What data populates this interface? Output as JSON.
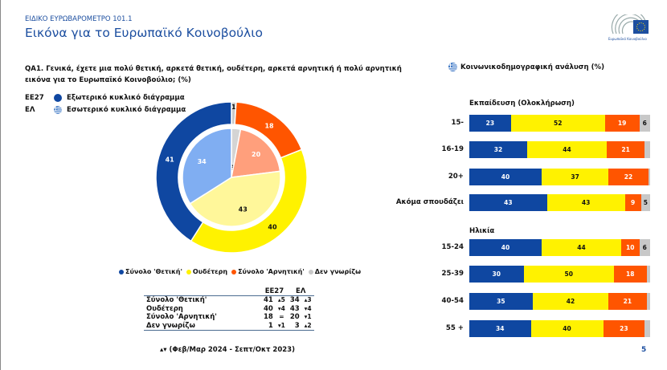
{
  "header": {
    "kicker": "ΕΙΔΙΚΟ ΕΥΡΩΒΑΡΟΜΕΤΡΟ 101.1",
    "title": "Εικόνα για το Ευρωπαϊκό Κοινοβούλιο",
    "logo_text": "Ευρωπαϊκό Κοινοβούλιο"
  },
  "question": "QA1. Γενικά, έχετε μια πολύ θετική, αρκετά θετική, ουδέτερη, αρκετά αρνητική ή πολύ αρνητική εικόνα για το Ευρωπαϊκό Κοινοβούλιο; (%)",
  "ring_legend": [
    {
      "code": "ΕΕ27",
      "label": "Εξωτερικό κυκλικό διάγραμμα",
      "icon": "eu-dot-icon"
    },
    {
      "code": "ΕΛ",
      "label": "Εσωτερικό κυκλικό διάγραμμα",
      "icon": "greek-flag-icon"
    }
  ],
  "colors": {
    "positive": "#0f47a1",
    "neutral": "#fff200",
    "negative": "#ff5500",
    "dontknow": "#c8c8c8",
    "positive_light": "#80aef2",
    "neutral_light": "#fff79a",
    "negative_light": "#ff9f7c",
    "dontknow_light": "#d4d4d4",
    "brand": "#1d4fa0"
  },
  "chart_data": [
    {
      "type": "pie",
      "variant": "double-donut",
      "categories": [
        "Σύνολο 'Θετική'",
        "Ουδέτερη",
        "Σύνολο 'Αρνητική'",
        "Δεν γνωρίζω"
      ],
      "series": [
        {
          "name": "ΕΕ27",
          "ring": "outer",
          "values": [
            41,
            40,
            18,
            1
          ]
        },
        {
          "name": "ΕΛ",
          "ring": "inner",
          "values": [
            34,
            43,
            20,
            3
          ]
        }
      ],
      "legend_placement": "bottom"
    },
    {
      "type": "bar",
      "orientation": "horizontal",
      "stacked": true,
      "title": "Κοινωνικοδημογραφική ανάλυση (%)",
      "categories_order": [
        "Σύνολο 'Θετική'",
        "Ουδέτερη",
        "Σύνολο 'Αρνητική'",
        "Δεν γνωρίζω"
      ],
      "groups": [
        {
          "title": "Εκπαίδευση (Ολοκλήρωση)",
          "rows": [
            {
              "label": "15-",
              "values": [
                23,
                52,
                19,
                6
              ],
              "labels": [
                "23",
                "52",
                "19",
                "6"
              ]
            },
            {
              "label": "16-19",
              "values": [
                32,
                44,
                21,
                3
              ],
              "labels": [
                "32",
                "44",
                "21",
                ""
              ]
            },
            {
              "label": "20+",
              "values": [
                40,
                37,
                22,
                1
              ],
              "labels": [
                "40",
                "37",
                "22",
                ""
              ]
            },
            {
              "label": "Ακόμα σπουδάζει",
              "values": [
                43,
                43,
                9,
                5
              ],
              "labels": [
                "43",
                "43",
                "9",
                "5"
              ]
            }
          ]
        },
        {
          "title": "Ηλικία",
          "rows": [
            {
              "label": "15-24",
              "values": [
                40,
                44,
                10,
                6
              ],
              "labels": [
                "40",
                "44",
                "10",
                "6"
              ]
            },
            {
              "label": "25-39",
              "values": [
                30,
                50,
                18,
                2
              ],
              "labels": [
                "30",
                "50",
                "18",
                ""
              ]
            },
            {
              "label": "40-54",
              "values": [
                35,
                42,
                21,
                2
              ],
              "labels": [
                "35",
                "42",
                "21",
                ""
              ]
            },
            {
              "label": "55 +",
              "values": [
                34,
                40,
                23,
                3
              ],
              "labels": [
                "34",
                "40",
                "23",
                ""
              ]
            }
          ]
        }
      ]
    }
  ],
  "summary_table": {
    "headers": [
      "",
      "ΕΕ27",
      "",
      "ΕΛ",
      ""
    ],
    "rows": [
      {
        "label": "Σύνολο 'Θετική'",
        "eu": "41",
        "eu_change": "▴5",
        "gr": "34",
        "gr_change": "▴3"
      },
      {
        "label": "Ουδέτερη",
        "eu": "40",
        "eu_change": "▾4",
        "gr": "43",
        "gr_change": "▾4"
      },
      {
        "label": "Σύνολο 'Αρνητική'",
        "eu": "18",
        "eu_change": "=",
        "gr": "20",
        "gr_change": "▾1"
      },
      {
        "label": "Δεν γνωρίζω",
        "eu": "1",
        "eu_change": "▾1",
        "gr": "3",
        "gr_change": "▴2"
      }
    ]
  },
  "footnote": "▴▾ (Φεβ/Μαρ 2024 - Σεπτ/Οκτ 2023)",
  "page_number": "5"
}
